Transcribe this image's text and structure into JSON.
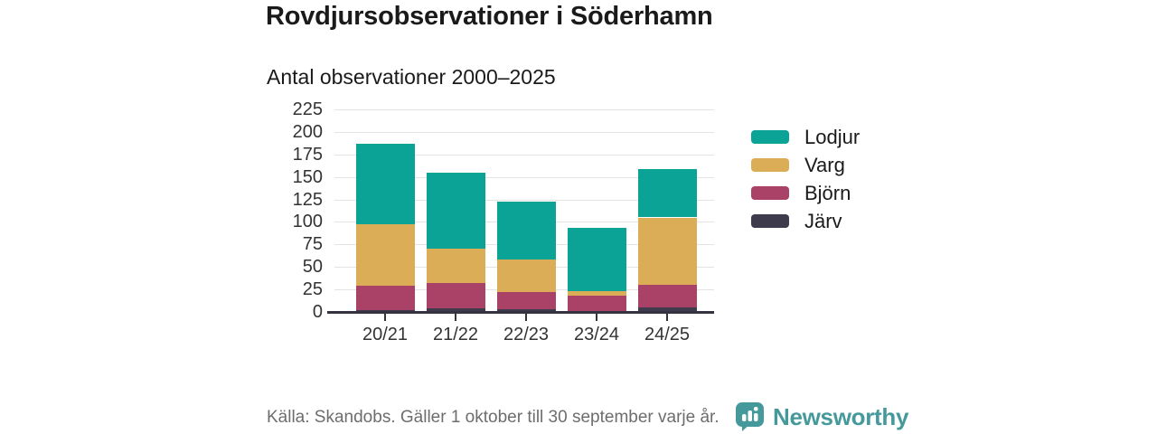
{
  "header": {
    "title": "Rovdjursobservationer i Söderhamn",
    "subtitle": "Antal observationer 2000–2025"
  },
  "chart_data": {
    "type": "bar",
    "stacked": true,
    "title": "Rovdjursobservationer i Söderhamn",
    "subtitle": "Antal observationer 2000–2025",
    "categories": [
      "20/21",
      "21/22",
      "22/23",
      "23/24",
      "24/25"
    ],
    "series": [
      {
        "name": "Järv",
        "color": "#3d3b4c",
        "values": [
          2,
          4,
          3,
          1,
          5
        ]
      },
      {
        "name": "Björn",
        "color": "#aa4167",
        "values": [
          27,
          28,
          19,
          17,
          25
        ]
      },
      {
        "name": "Varg",
        "color": "#dbad56",
        "values": [
          68,
          38,
          36,
          5,
          75
        ]
      },
      {
        "name": "Lodjur",
        "color": "#0aa396",
        "values": [
          90,
          85,
          65,
          70,
          54
        ]
      }
    ],
    "totals": [
      187,
      155,
      123,
      93,
      159
    ],
    "stack_order_bottom_to_top": [
      "Järv",
      "Björn",
      "Varg",
      "Lodjur"
    ],
    "legend_order_top_to_bottom": [
      "Lodjur",
      "Varg",
      "Björn",
      "Järv"
    ],
    "legend_position": "right",
    "xlabel": "",
    "ylabel": "",
    "ylim": [
      0,
      235
    ],
    "yticks": [
      0,
      25,
      50,
      75,
      100,
      125,
      150,
      175,
      200,
      225
    ],
    "grid": true
  },
  "footer": {
    "source": "Källa: Skandobs. Gäller 1 oktober till 30 september varje år.",
    "brand": "Newsworthy"
  },
  "colors": {
    "background": "#ffffff",
    "title_text": "#1a1a1a",
    "axis_text": "#333333",
    "gridline": "#e3e3e3",
    "axis_line": "#35333f",
    "source_text": "#6d6d6d",
    "brand_teal": "#45999b"
  },
  "icons": {
    "brand_logo": "newsworthy-speech-bubble-bar-chart"
  }
}
